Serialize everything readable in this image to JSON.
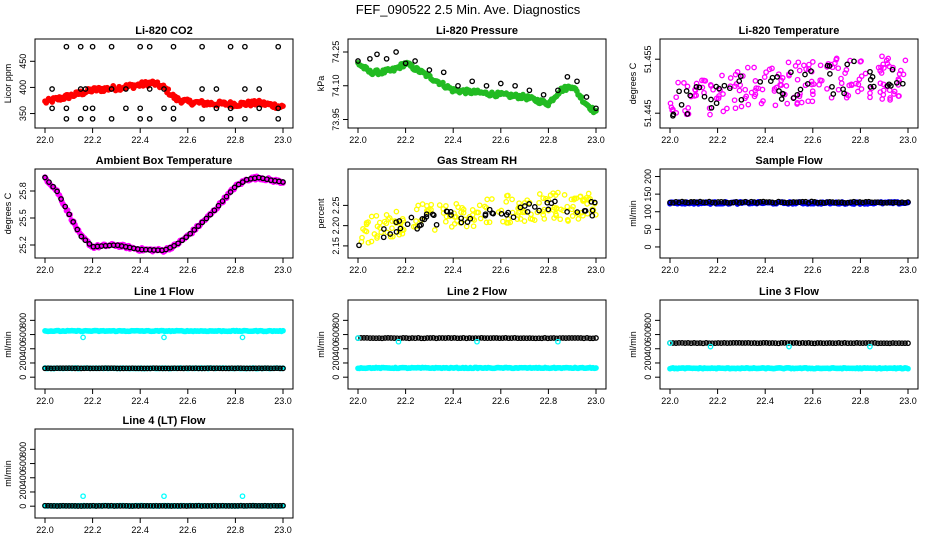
{
  "figure_title": "FEF_090522  2.5 Min. Ave. Diagnostics",
  "colors": {
    "black": "#000000",
    "red": "#ff0000",
    "green": "#22bb22",
    "magenta": "#ff00ff",
    "yellow": "#ffff00",
    "blue": "#0000ff",
    "cyan": "#00ffff"
  },
  "chart_data": [
    {
      "id": "co2",
      "type": "scatter",
      "title": "Li-820 CO2",
      "ylabel": "Licor ppm",
      "xlim": [
        22.0,
        23.0
      ],
      "xticks": [
        22.0,
        22.2,
        22.4,
        22.6,
        22.8,
        23.0
      ],
      "ylim": [
        330,
        485
      ],
      "yticks": [
        350,
        400,
        450
      ],
      "series": [
        {
          "name": "sample",
          "color": "red",
          "style": "band",
          "x": [
            22.0,
            22.1,
            22.2,
            22.3,
            22.4,
            22.45,
            22.5,
            22.55,
            22.6,
            22.7,
            22.8,
            22.9,
            23.0
          ],
          "y": [
            372,
            383,
            395,
            399,
            405,
            409,
            400,
            378,
            372,
            369,
            368,
            370,
            363
          ],
          "spread": 5
        },
        {
          "name": "reference",
          "color": "black",
          "style": "levels",
          "levels": [
            340,
            360,
            397,
            478
          ],
          "x": [
            22.03,
            22.09,
            22.15,
            22.17,
            22.2,
            22.28,
            22.34,
            22.4,
            22.44,
            22.5,
            22.54,
            22.66,
            22.72,
            22.78,
            22.84,
            22.9,
            22.98
          ]
        }
      ]
    },
    {
      "id": "pressure",
      "type": "scatter",
      "title": "Li-820 Pressure",
      "ylabel": "kPa",
      "xlim": [
        22.0,
        23.0
      ],
      "xticks": [
        22.0,
        22.2,
        22.4,
        22.6,
        22.8,
        23.0
      ],
      "ylim": [
        73.93,
        74.29
      ],
      "yticks": [
        73.95,
        74.1,
        74.25
      ],
      "ytick_labels": [
        "73.95",
        "74.10",
        "74.25"
      ],
      "series": [
        {
          "name": "sample",
          "color": "green",
          "style": "band",
          "x": [
            22.0,
            22.05,
            22.1,
            22.15,
            22.2,
            22.25,
            22.3,
            22.4,
            22.5,
            22.6,
            22.7,
            22.8,
            22.85,
            22.9,
            22.95,
            23.0
          ],
          "y": [
            74.2,
            74.16,
            74.16,
            74.17,
            74.2,
            74.17,
            74.14,
            74.08,
            74.07,
            74.06,
            74.05,
            74.02,
            74.08,
            74.1,
            74.03,
            73.98
          ],
          "spread": 0.01
        },
        {
          "name": "reference",
          "color": "black",
          "style": "scatter",
          "x": [
            22.0,
            22.05,
            22.08,
            22.12,
            22.16,
            22.2,
            22.24,
            22.3,
            22.36,
            22.42,
            22.48,
            22.54,
            22.6,
            22.66,
            22.72,
            22.78,
            22.84,
            22.88,
            22.92,
            22.96,
            23.0
          ],
          "y": [
            74.21,
            74.22,
            74.24,
            74.22,
            74.25,
            74.2,
            74.21,
            74.17,
            74.16,
            74.1,
            74.12,
            74.1,
            74.11,
            74.1,
            74.08,
            74.06,
            74.08,
            74.14,
            74.12,
            74.05,
            74.0
          ]
        }
      ]
    },
    {
      "id": "temperature",
      "type": "scatter",
      "title": "Li-820 Temperature",
      "ylabel": "degrees C",
      "xlim": [
        22.0,
        23.0
      ],
      "xticks": [
        22.0,
        22.2,
        22.4,
        22.6,
        22.8,
        23.0
      ],
      "ylim": [
        51.443,
        51.458
      ],
      "yticks": [
        51.445,
        51.455
      ],
      "ytick_labels": [
        "51.445",
        "51.455"
      ],
      "series": [
        {
          "name": "sample",
          "color": "magenta",
          "style": "noise",
          "x": [
            22.0,
            22.2,
            22.4,
            22.6,
            22.8,
            23.0
          ],
          "y": [
            51.447,
            51.449,
            51.45,
            51.451,
            51.452,
            51.451
          ],
          "spread": 0.004
        },
        {
          "name": "reference",
          "color": "black",
          "style": "noise_sparse",
          "x": [
            22.0,
            22.2,
            22.4,
            22.6,
            22.8,
            23.0
          ],
          "y": [
            51.447,
            51.449,
            51.45,
            51.451,
            51.452,
            51.451
          ],
          "spread": 0.003
        }
      ]
    },
    {
      "id": "ambient",
      "type": "scatter",
      "title": "Ambient Box Temperature",
      "ylabel": "degrees C",
      "xlim": [
        22.0,
        23.0
      ],
      "xticks": [
        22.0,
        22.2,
        22.4,
        22.6,
        22.8,
        23.0
      ],
      "ylim": [
        25.1,
        26.0
      ],
      "yticks": [
        25.2,
        25.5,
        25.8
      ],
      "ytick_labels": [
        "25.2",
        "25.5",
        "25.8"
      ],
      "series": [
        {
          "name": "sample",
          "color": "magenta",
          "style": "band",
          "x": [
            22.0,
            22.05,
            22.1,
            22.15,
            22.2,
            22.3,
            22.4,
            22.5,
            22.55,
            22.6,
            22.7,
            22.8,
            22.85,
            22.9,
            22.95,
            23.0
          ],
          "y": [
            25.95,
            25.8,
            25.55,
            25.3,
            25.18,
            25.2,
            25.15,
            25.14,
            25.2,
            25.3,
            25.55,
            25.85,
            25.93,
            25.95,
            25.92,
            25.9
          ],
          "spread": 0.02
        },
        {
          "name": "reference",
          "color": "black",
          "style": "along",
          "x": [
            22.0,
            22.05,
            22.1,
            22.15,
            22.2,
            22.3,
            22.4,
            22.5,
            22.55,
            22.6,
            22.7,
            22.8,
            22.85,
            22.9,
            22.95,
            23.0
          ],
          "y": [
            25.95,
            25.8,
            25.55,
            25.3,
            25.18,
            25.2,
            25.15,
            25.14,
            25.2,
            25.3,
            25.55,
            25.85,
            25.93,
            25.95,
            25.92,
            25.9
          ]
        }
      ]
    },
    {
      "id": "rh",
      "type": "scatter",
      "title": "Gas Stream RH",
      "ylabel": "percent",
      "xlim": [
        22.0,
        23.0
      ],
      "xticks": [
        22.0,
        22.2,
        22.4,
        22.6,
        22.8,
        23.0
      ],
      "ylim": [
        2.13,
        2.33
      ],
      "yticks": [
        2.15,
        2.2,
        2.25
      ],
      "ytick_labels": [
        "2.15",
        "2.20",
        "2.25"
      ],
      "series": [
        {
          "name": "sample",
          "color": "yellow",
          "style": "noise",
          "x": [
            22.0,
            22.1,
            22.2,
            22.3,
            22.4,
            22.5,
            22.6,
            22.7,
            22.8,
            22.9,
            23.0
          ],
          "y": [
            2.18,
            2.2,
            2.215,
            2.22,
            2.225,
            2.235,
            2.24,
            2.245,
            2.25,
            2.245,
            2.25
          ],
          "spread": 0.035
        },
        {
          "name": "reference",
          "color": "black",
          "style": "noise_sparse",
          "x": [
            22.0,
            22.1,
            22.2,
            22.3,
            22.4,
            22.5,
            22.6,
            22.7,
            22.8,
            22.9,
            23.0
          ],
          "y": [
            2.17,
            2.19,
            2.205,
            2.215,
            2.22,
            2.23,
            2.235,
            2.24,
            2.245,
            2.24,
            2.245
          ],
          "spread": 0.02
        }
      ]
    },
    {
      "id": "sample_flow",
      "type": "scatter",
      "title": "Sample Flow",
      "ylabel": "ml/min",
      "xlim": [
        22.0,
        23.0
      ],
      "xticks": [
        22.0,
        22.2,
        22.4,
        22.6,
        22.8,
        23.0
      ],
      "ylim": [
        -20,
        210
      ],
      "yticks": [
        0,
        50,
        100,
        150,
        200
      ],
      "series": [
        {
          "name": "flow",
          "color": "blue",
          "style": "flat",
          "y": 125,
          "spread": 3
        },
        {
          "name": "reference",
          "color": "black",
          "style": "flat_sparse",
          "y": 127,
          "spread": 2
        }
      ]
    },
    {
      "id": "line1",
      "type": "scatter",
      "title": "Line 1 Flow",
      "ylabel": "ml/min",
      "xlim": [
        22.0,
        23.0
      ],
      "xticks": [
        22.0,
        22.2,
        22.4,
        22.6,
        22.8,
        23.0
      ],
      "ylim": [
        -110,
        1030
      ],
      "yticks": [
        0,
        200,
        400,
        600,
        800
      ],
      "series": [
        {
          "name": "flow",
          "color": "cyan",
          "style": "flat",
          "y": 650,
          "spread": 6
        },
        {
          "name": "flow-dips",
          "color": "cyan",
          "style": "points",
          "x": [
            22.16,
            22.5,
            22.83
          ],
          "y": [
            560,
            560,
            560
          ]
        },
        {
          "name": "idle",
          "color": "cyan",
          "style": "flat",
          "y": 125,
          "spread": 4
        },
        {
          "name": "reference",
          "color": "black",
          "style": "flat_sparse",
          "y": 125,
          "spread": 2
        }
      ]
    },
    {
      "id": "line2",
      "type": "scatter",
      "title": "Line 2 Flow",
      "ylabel": "ml/min",
      "xlim": [
        22.0,
        23.0
      ],
      "xticks": [
        22.0,
        22.2,
        22.4,
        22.6,
        22.8,
        23.0
      ],
      "ylim": [
        -110,
        1030
      ],
      "yticks": [
        0,
        200,
        400,
        600,
        800
      ],
      "series": [
        {
          "name": "reference",
          "color": "black",
          "style": "flat_sparse",
          "y": 550,
          "spread": 3
        },
        {
          "name": "flow-dips",
          "color": "cyan",
          "style": "points",
          "x": [
            22.0,
            22.17,
            22.5,
            22.84
          ],
          "y": [
            550,
            500,
            500,
            500
          ]
        },
        {
          "name": "idle",
          "color": "cyan",
          "style": "flat",
          "y": 130,
          "spread": 6
        }
      ]
    },
    {
      "id": "line3",
      "type": "scatter",
      "title": "Line 3 Flow",
      "ylabel": "ml/min",
      "xlim": [
        22.0,
        23.0
      ],
      "xticks": [
        22.0,
        22.2,
        22.4,
        22.6,
        22.8,
        23.0
      ],
      "ylim": [
        -110,
        1030
      ],
      "yticks": [
        0,
        200,
        400,
        600,
        800
      ],
      "series": [
        {
          "name": "reference",
          "color": "black",
          "style": "flat_sparse",
          "y": 480,
          "spread": 3
        },
        {
          "name": "flow-dips",
          "color": "cyan",
          "style": "points",
          "x": [
            22.0,
            22.17,
            22.5,
            22.84
          ],
          "y": [
            480,
            430,
            430,
            430
          ]
        },
        {
          "name": "idle",
          "color": "cyan",
          "style": "flat",
          "y": 125,
          "spread": 6
        }
      ]
    },
    {
      "id": "line4",
      "type": "scatter",
      "title": "Line 4 (LT) Flow",
      "ylabel": "ml/min",
      "xlim": [
        22.0,
        23.0
      ],
      "xticks": [
        22.0,
        22.2,
        22.4,
        22.6,
        22.8,
        23.0
      ],
      "ylim": [
        -110,
        1030
      ],
      "yticks": [
        0,
        200,
        400,
        600,
        800
      ],
      "series": [
        {
          "name": "idle",
          "color": "cyan",
          "style": "flat",
          "y": 5,
          "spread": 3
        },
        {
          "name": "reference",
          "color": "black",
          "style": "flat_sparse",
          "y": 5,
          "spread": 2
        },
        {
          "name": "flow-spikes",
          "color": "cyan",
          "style": "points",
          "x": [
            22.16,
            22.5,
            22.83
          ],
          "y": [
            140,
            140,
            140
          ]
        }
      ]
    }
  ]
}
